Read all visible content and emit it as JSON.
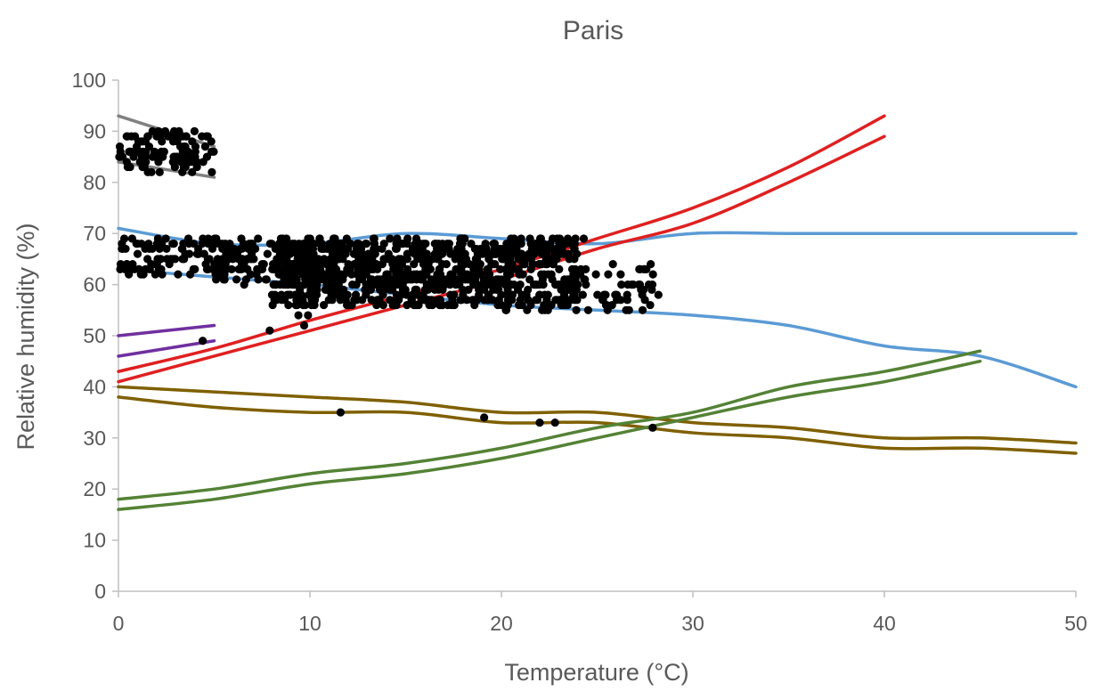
{
  "chart_data": {
    "type": "scatter",
    "title": "Paris",
    "xlabel": "Temperature (°C)",
    "ylabel": "Relative humidity (%)",
    "xlim": [
      0,
      50
    ],
    "ylim": [
      0,
      100
    ],
    "x_ticks": [
      "0",
      "10",
      "20",
      "30",
      "40",
      "50"
    ],
    "y_ticks": [
      "0",
      "10",
      "20",
      "30",
      "40",
      "50",
      "60",
      "70",
      "80",
      "90",
      "100"
    ],
    "grid": false,
    "legend": "none",
    "series_lines": [
      {
        "color": "#808080",
        "points": [
          [
            0,
            93
          ],
          [
            5,
            87
          ]
        ]
      },
      {
        "color": "#808080",
        "points": [
          [
            0,
            84
          ],
          [
            5,
            81
          ]
        ]
      },
      {
        "color": "#5B9BD5",
        "points": [
          [
            0,
            71
          ],
          [
            5,
            68
          ],
          [
            10,
            68
          ],
          [
            15,
            70
          ],
          [
            20,
            69
          ],
          [
            25,
            68
          ],
          [
            30,
            70
          ],
          [
            35,
            70
          ],
          [
            40,
            70
          ],
          [
            45,
            70
          ],
          [
            50,
            70
          ]
        ]
      },
      {
        "color": "#5B9BD5",
        "points": [
          [
            0,
            63
          ],
          [
            5,
            61.5
          ],
          [
            10,
            60
          ],
          [
            15,
            58
          ],
          [
            20,
            56
          ],
          [
            25,
            55
          ],
          [
            30,
            54
          ],
          [
            35,
            52
          ],
          [
            40,
            48
          ],
          [
            45,
            46
          ],
          [
            50,
            40
          ]
        ]
      },
      {
        "color": "#7030A0",
        "points": [
          [
            0,
            50
          ],
          [
            5,
            52
          ]
        ]
      },
      {
        "color": "#7030A0",
        "points": [
          [
            0,
            46
          ],
          [
            5,
            49
          ]
        ]
      },
      {
        "color": "#E02020",
        "points": [
          [
            0,
            43
          ],
          [
            5,
            47.5
          ],
          [
            10,
            53
          ],
          [
            15,
            58
          ],
          [
            20,
            63
          ],
          [
            25,
            69
          ],
          [
            30,
            75
          ],
          [
            35,
            83
          ],
          [
            40,
            93
          ]
        ]
      },
      {
        "color": "#E02020",
        "points": [
          [
            0,
            41
          ],
          [
            5,
            46
          ],
          [
            10,
            51
          ],
          [
            15,
            56
          ],
          [
            20,
            61
          ],
          [
            25,
            67
          ],
          [
            30,
            72
          ],
          [
            35,
            80
          ],
          [
            40,
            89
          ]
        ]
      },
      {
        "color": "#7F6000",
        "points": [
          [
            0,
            40
          ],
          [
            5,
            39
          ],
          [
            10,
            38
          ],
          [
            15,
            37
          ],
          [
            20,
            35
          ],
          [
            25,
            35
          ],
          [
            30,
            33
          ],
          [
            35,
            32
          ],
          [
            40,
            30
          ],
          [
            45,
            30
          ],
          [
            50,
            29
          ]
        ]
      },
      {
        "color": "#7F6000",
        "points": [
          [
            0,
            38
          ],
          [
            5,
            36
          ],
          [
            10,
            35
          ],
          [
            15,
            35
          ],
          [
            20,
            33
          ],
          [
            25,
            33
          ],
          [
            30,
            31
          ],
          [
            35,
            30
          ],
          [
            40,
            28
          ],
          [
            45,
            28
          ],
          [
            50,
            27
          ]
        ]
      },
      {
        "color": "#548235",
        "points": [
          [
            0,
            18
          ],
          [
            5,
            20
          ],
          [
            10,
            23
          ],
          [
            15,
            25
          ],
          [
            20,
            28
          ],
          [
            25,
            32
          ],
          [
            30,
            35
          ],
          [
            35,
            40
          ],
          [
            40,
            43
          ],
          [
            45,
            47
          ]
        ]
      },
      {
        "color": "#548235",
        "points": [
          [
            0,
            16
          ],
          [
            5,
            18
          ],
          [
            10,
            21
          ],
          [
            15,
            23
          ],
          [
            20,
            26
          ],
          [
            25,
            30
          ],
          [
            30,
            34
          ],
          [
            35,
            38
          ],
          [
            40,
            41
          ],
          [
            45,
            45
          ]
        ]
      }
    ],
    "scatter_color": "#000000",
    "scatter_clusters": [
      {
        "x_range": [
          0,
          5
        ],
        "y_range": [
          82,
          90
        ],
        "count": 110
      },
      {
        "x_range": [
          0,
          7
        ],
        "y_range": [
          62,
          69
        ],
        "count": 120
      },
      {
        "x_range": [
          5,
          12
        ],
        "y_range": [
          60,
          69
        ],
        "count": 160
      },
      {
        "x_range": [
          8,
          20
        ],
        "y_range": [
          56,
          69
        ],
        "count": 650
      },
      {
        "x_range": [
          20,
          24
        ],
        "y_range": [
          55,
          69
        ],
        "count": 200
      },
      {
        "x_range": [
          24,
          28
        ],
        "y_range": [
          54,
          64
        ],
        "count": 50
      }
    ],
    "scatter_points": [
      [
        4.4,
        49
      ],
      [
        7.9,
        51
      ],
      [
        9.4,
        54
      ],
      [
        9.7,
        52
      ],
      [
        9.9,
        54
      ],
      [
        11.6,
        35
      ],
      [
        19.1,
        34
      ],
      [
        22,
        33
      ],
      [
        22.8,
        33
      ],
      [
        27.9,
        32
      ],
      [
        24.3,
        69
      ],
      [
        26.8,
        60
      ],
      [
        27.2,
        63
      ],
      [
        28.2,
        58
      ]
    ]
  }
}
